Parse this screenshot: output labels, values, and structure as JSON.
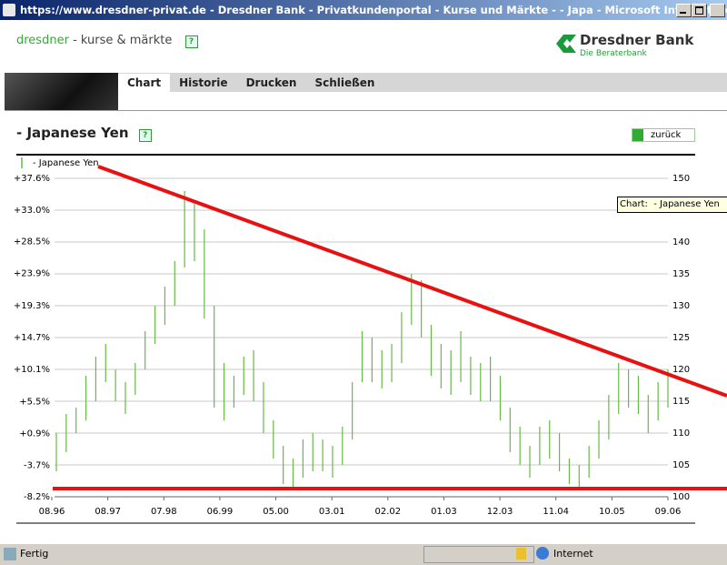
{
  "window": {
    "title": "https://www.dresdner-privat.de - Dresdner Bank - Privatkundenportal - Kurse und Märkte - - Japa - Microsoft Internet Explorer"
  },
  "header": {
    "brand": "dresdner",
    "section": "- kurse & märkte",
    "help": "?",
    "logo_name": "Dresdner Bank",
    "logo_tagline": "Die Beraterbank"
  },
  "nav": [
    "Chart",
    "Historie",
    "Drucken",
    "Schließen"
  ],
  "page": {
    "title": "- Japanese Yen",
    "help": "?",
    "back_button": "zurück",
    "tooltip": "Chart:  - Japanese Yen"
  },
  "status": {
    "left": "Fertig",
    "zone": "Internet"
  },
  "chart_data": {
    "type": "ohlc",
    "series": [
      {
        "name": "- Japanese Yen",
        "color": "#66bb44",
        "high": [
          110,
          113,
          114,
          119,
          122,
          124,
          120,
          118,
          121,
          126,
          130,
          133,
          137,
          148,
          146,
          142,
          130,
          121,
          119,
          122,
          123,
          118,
          112,
          108,
          106,
          109,
          110,
          109,
          108,
          111,
          118,
          126,
          125,
          123,
          124,
          129,
          135,
          134,
          127,
          124,
          123,
          126,
          122,
          121,
          122,
          119,
          114,
          111,
          108,
          111,
          112,
          110,
          106,
          105,
          108,
          112,
          116,
          121,
          120,
          119,
          116,
          118,
          120
        ],
        "low": [
          104,
          107,
          110,
          112,
          115,
          118,
          115,
          113,
          116,
          120,
          124,
          127,
          130,
          136,
          137,
          128,
          114,
          112,
          114,
          116,
          115,
          110,
          106,
          102,
          101,
          103,
          104,
          104,
          103,
          105,
          109,
          118,
          118,
          117,
          118,
          121,
          127,
          125,
          119,
          117,
          116,
          118,
          116,
          115,
          115,
          112,
          107,
          105,
          103,
          105,
          106,
          104,
          102,
          101,
          103,
          106,
          109,
          113,
          114,
          113,
          110,
          112,
          114
        ]
      }
    ],
    "x_labels": [
      "08.96",
      "08.97",
      "07.98",
      "06.99",
      "05.00",
      "03.01",
      "02.02",
      "01.03",
      "12.03",
      "11.04",
      "10.05",
      "09.06"
    ],
    "ylim": [
      100,
      150
    ],
    "yticks": [
      100,
      105,
      110,
      115,
      120,
      125,
      130,
      135,
      140,
      145,
      150
    ],
    "y2lim": [
      -8.2,
      37.6
    ],
    "y2ticks": [
      {
        "value": -8.2,
        "label": "-8.2%"
      },
      {
        "value": -3.7,
        "label": "-3.7%"
      },
      {
        "value": 0.9,
        "label": "+0.9%"
      },
      {
        "value": 5.5,
        "label": "+5.5%"
      },
      {
        "value": 10.1,
        "label": "+10.1%"
      },
      {
        "value": 14.7,
        "label": "+14.7%"
      },
      {
        "value": 19.3,
        "label": "+19.3%"
      },
      {
        "value": 23.9,
        "label": "+23.9%"
      },
      {
        "value": 28.5,
        "label": "+28.5%"
      },
      {
        "value": 33.0,
        "label": "+33.0%"
      },
      {
        "value": 37.6,
        "label": "+37.6%"
      }
    ],
    "grid": true
  }
}
